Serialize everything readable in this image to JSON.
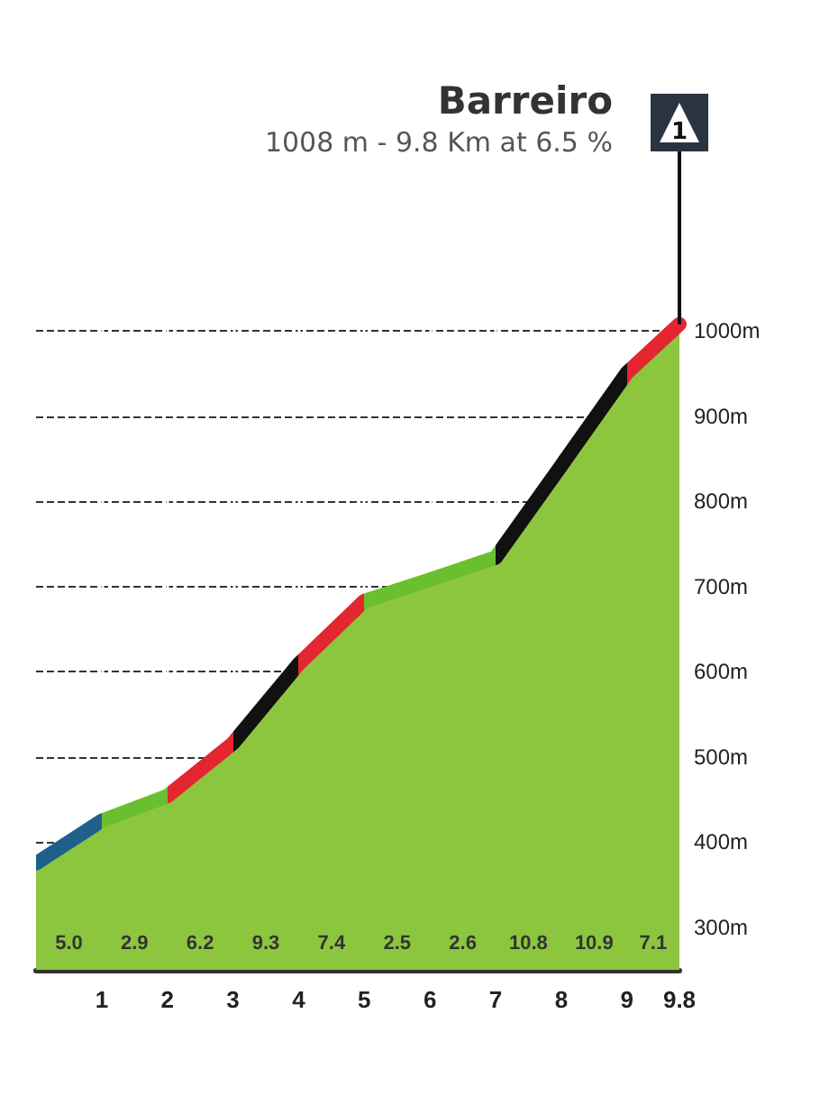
{
  "chart_data": {
    "type": "area",
    "title": "Barreiro",
    "subtitle": "1008 m - 9.8 Km at 6.5 %",
    "x": [
      0,
      1,
      2,
      3,
      4,
      5,
      6,
      7,
      8,
      9,
      9.8
    ],
    "series": [
      {
        "color": "#8cc63f",
        "values": [
          375,
          425,
          454,
          516,
          609,
          683,
          708,
          734,
          842,
          951,
          1008
        ],
        "colors": [
          "#1f5f8b",
          "#6abf2e",
          "#e3262f",
          "#111111",
          "#e3262f",
          "#6abf2e",
          "#6abf2e",
          "#111111",
          "#111111",
          "#e3262f",
          "#e3262f"
        ]
      }
    ],
    "xlim": [
      0,
      9.8
    ],
    "xticks": [
      1,
      2,
      3,
      4,
      5,
      6,
      7,
      8,
      9,
      9.8
    ],
    "ylim": [
      250,
      1050
    ],
    "yticks": [
      {
        "value": 300,
        "label": "300m"
      },
      {
        "value": 400,
        "label": "400m"
      },
      {
        "value": 500,
        "label": "500m"
      },
      {
        "value": 600,
        "label": "600m"
      },
      {
        "value": 700,
        "label": "700m"
      },
      {
        "value": 800,
        "label": "800m"
      },
      {
        "value": 900,
        "label": "900m"
      },
      {
        "value": 1000,
        "label": "1000m"
      }
    ],
    "annotations": [
      "1",
      "5.0",
      "2.9",
      "6.2",
      "9.3",
      "7.4",
      "2.5",
      "2.6",
      "10.8",
      "10.9",
      "7.1"
    ],
    "grid": true,
    "line_style": "dashed",
    "marker": "none"
  }
}
